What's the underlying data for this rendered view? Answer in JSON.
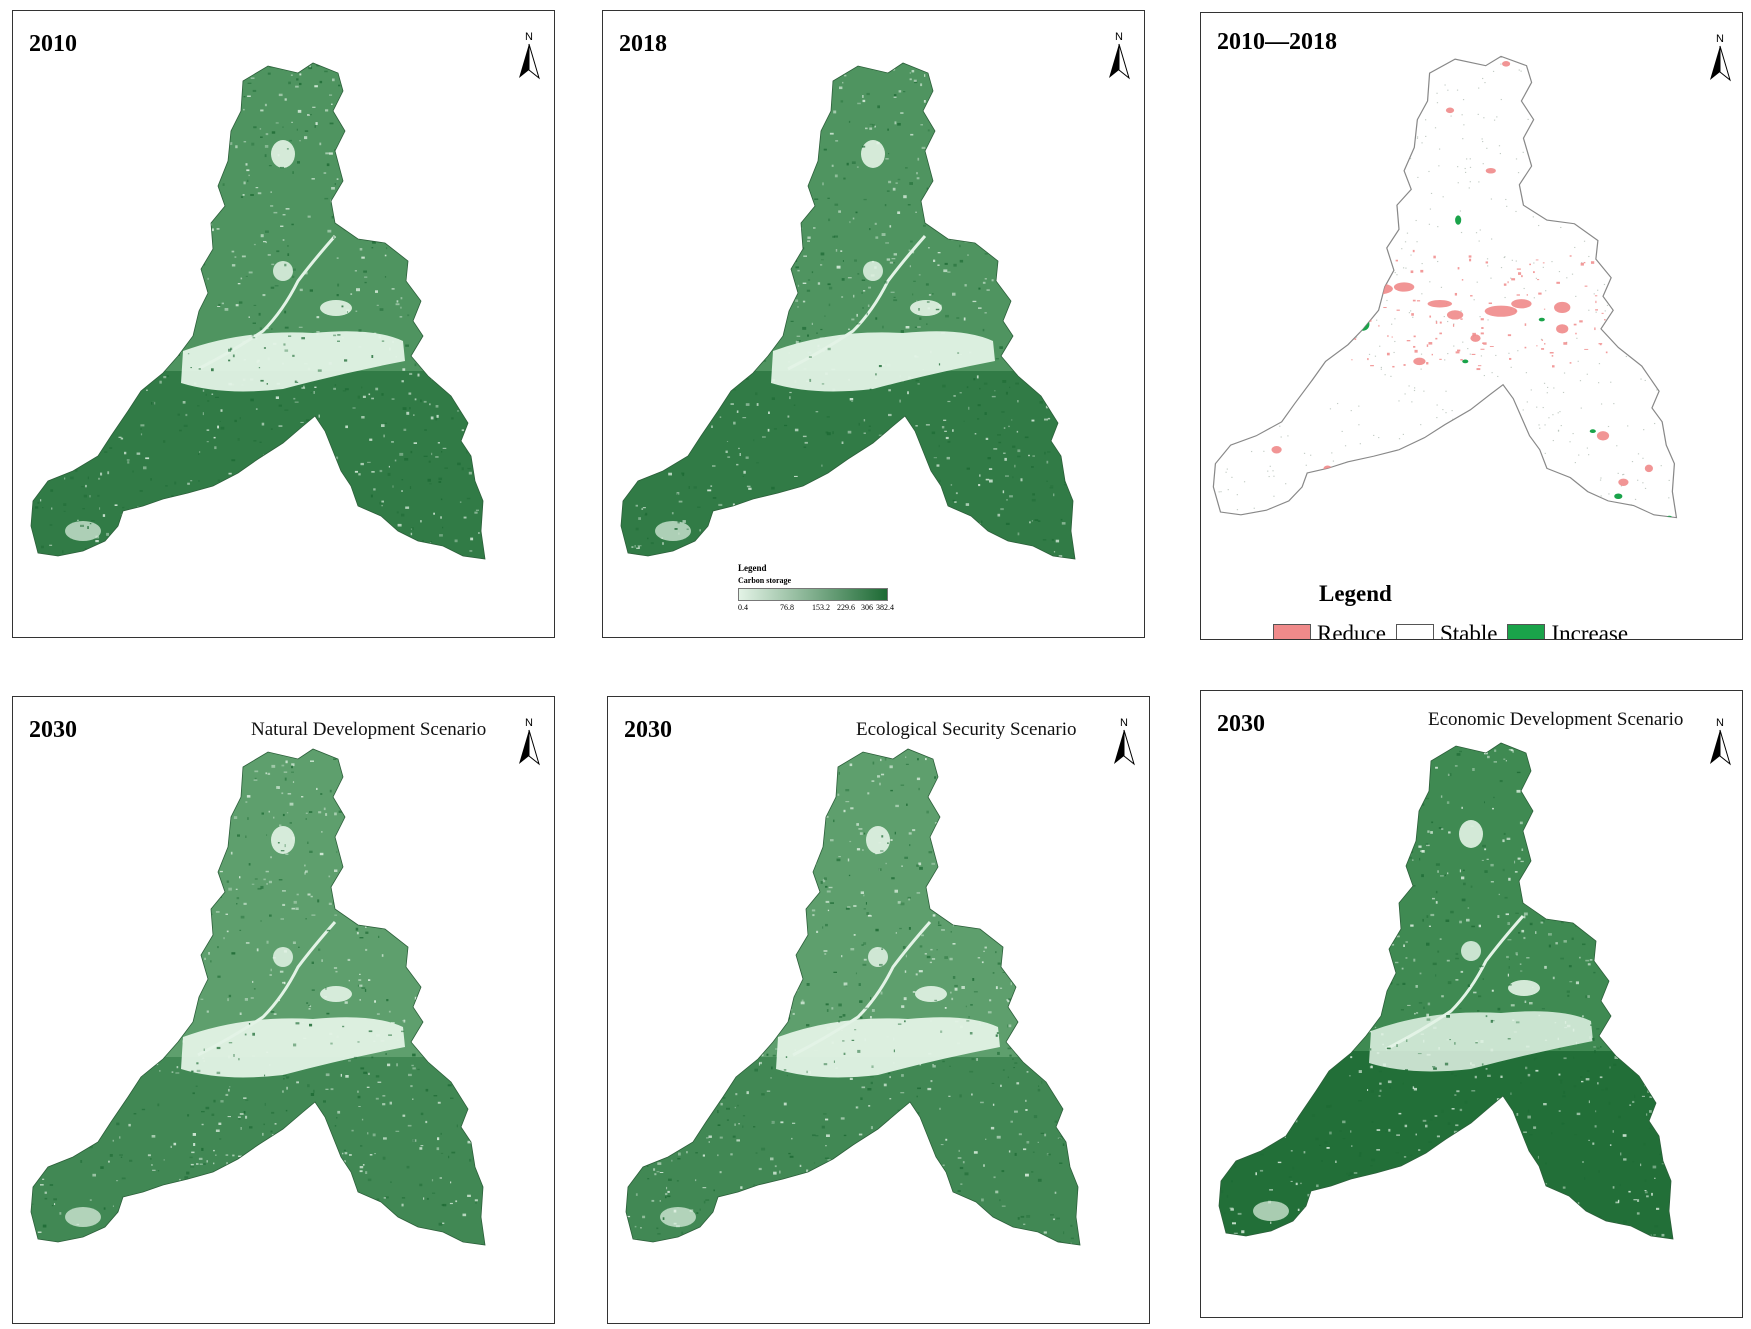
{
  "colors": {
    "carbon_low": "#e3f3e6",
    "carbon_mid": "#4f9460",
    "carbon_high": "#1d6a34",
    "reduce": "#f08a8a",
    "stable": "#ffffff",
    "increase": "#1aa34a"
  },
  "north_label": "N",
  "panels": [
    {
      "year": "2010",
      "scenario": "",
      "kind": "carbon",
      "tone": "mid"
    },
    {
      "year": "2018",
      "scenario": "",
      "kind": "carbon",
      "tone": "mid"
    },
    {
      "year": "2010—2018",
      "scenario": "",
      "kind": "change",
      "tone": "none"
    },
    {
      "year": "2030",
      "scenario": "Natural Development Scenario",
      "kind": "carbon",
      "tone": "light"
    },
    {
      "year": "2030",
      "scenario": "Ecological Security Scenario",
      "kind": "carbon",
      "tone": "light"
    },
    {
      "year": "2030",
      "scenario": "Economic Development Scenario",
      "kind": "carbon",
      "tone": "dark"
    }
  ],
  "carbon_legend": {
    "title": "Legend",
    "subtitle": "Carbon storage",
    "ticks": [
      "0.4",
      "76.8",
      "153.2",
      "229.6",
      "306",
      "382.4"
    ]
  },
  "change_legend": {
    "title": "Legend",
    "items": [
      {
        "label": "Reduce",
        "color": "#f08a8a"
      },
      {
        "label": "Stable",
        "color": "#ffffff"
      },
      {
        "label": "Increase",
        "color": "#1aa34a"
      }
    ]
  }
}
